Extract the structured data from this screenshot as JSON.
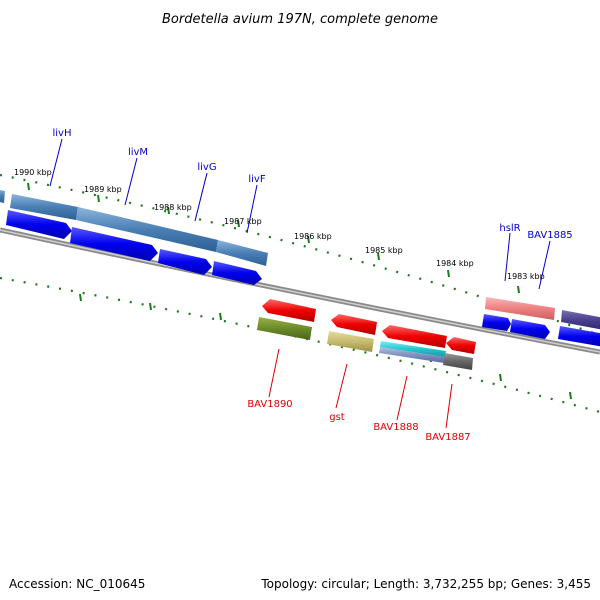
{
  "title": "Bordetella avium 197N, complete genome",
  "kbp_labels": [
    "1990 kbp",
    "1989 kbp",
    "1988 kbp",
    "1987 kbp",
    "1986 kbp",
    "1985 kbp",
    "1984 kbp",
    "1983 kbp"
  ],
  "gene_labels_top": [
    "livH",
    "livM",
    "livG",
    "livF",
    "hslR",
    "BAV1885"
  ],
  "gene_labels_bottom": [
    "BAV1890",
    "gst",
    "BAV1888",
    "BAV1887"
  ],
  "colors": {
    "top_label": "#0000cc",
    "bottom_label": "#dd0000",
    "tick": "#1e7a1e",
    "backbone": "#8a8a8a"
  },
  "footer": {
    "accession": "Accession: NC_010645",
    "stats": "Topology: circular; Length: 3,732,255 bp; Genes: 3,455"
  }
}
